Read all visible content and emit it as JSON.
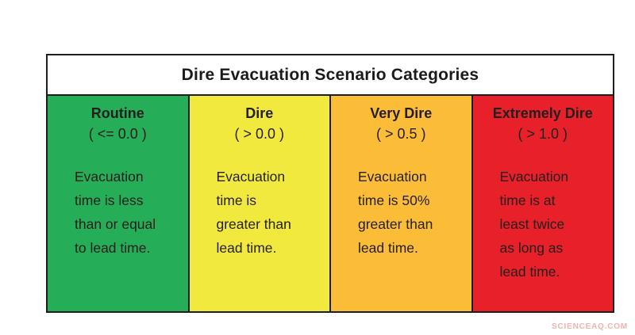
{
  "figure": {
    "title": "Dire Evacuation Scenario Categories",
    "watermark": "SCIENCEAQ.COM",
    "border_color": "#1d1d1d",
    "text_color": "#241e1f",
    "watermark_color": "#f0b3ab"
  },
  "columns": [
    {
      "name": "Routine",
      "threshold": "( <= 0.0 )",
      "description": "Evacuation\ntime is less\nthan or equal\nto lead time.",
      "color": "#25ae57"
    },
    {
      "name": "Dire",
      "threshold": "( > 0.0 )",
      "description": "Evacuation\ntime is\ngreater than\nlead time.",
      "color": "#f1e93e"
    },
    {
      "name": "Very Dire",
      "threshold": "( > 0.5 )",
      "description": "Evacuation\ntime is 50%\ngreater than\nlead time.",
      "color": "#fbbc38"
    },
    {
      "name": "Extremely Dire",
      "threshold": "( > 1.0 )",
      "description": "Evacuation\ntime is at\nleast twice\nas long as\nlead time.",
      "color": "#e7202a"
    }
  ]
}
